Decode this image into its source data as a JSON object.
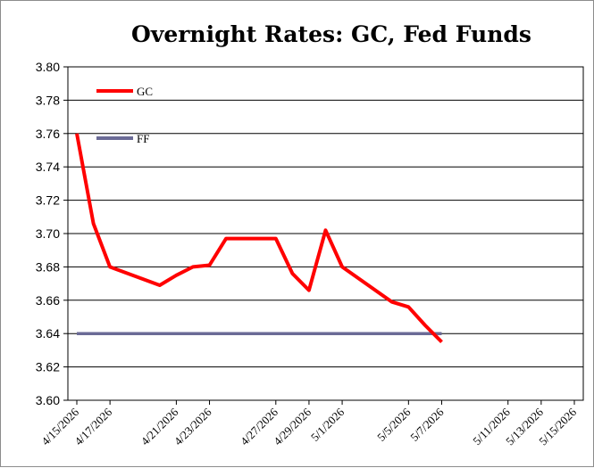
{
  "chart_data": {
    "type": "line",
    "title": "Overnight Rates: GC, Fed Funds",
    "xlabel": "",
    "ylabel": "",
    "ylim": [
      3.6,
      3.8
    ],
    "y_ticks": [
      "3.60",
      "3.62",
      "3.64",
      "3.66",
      "3.68",
      "3.70",
      "3.72",
      "3.74",
      "3.76",
      "3.78",
      "3.80"
    ],
    "x_ticks": [
      "4/15/2026",
      "4/17/2026",
      "4/21/2026",
      "4/23/2026",
      "4/27/2026",
      "4/29/2026",
      "5/1/2026",
      "5/5/2026",
      "5/7/2026",
      "5/11/2026",
      "5/13/2026",
      "5/15/2026"
    ],
    "x_points": [
      "4/15/2026",
      "4/16/2026",
      "4/17/2026",
      "4/20/2026",
      "4/21/2026",
      "4/22/2026",
      "4/23/2026",
      "4/24/2026",
      "4/27/2026",
      "4/28/2026",
      "4/29/2026",
      "4/30/2026",
      "5/1/2026",
      "5/4/2026",
      "5/5/2026",
      "5/6/2026",
      "5/7/2026",
      "5/8/2026"
    ],
    "grid": true,
    "legend_position": "top-left",
    "series": [
      {
        "name": "GC",
        "color": "#ff0000",
        "values": [
          3.76,
          3.706,
          3.68,
          3.669,
          3.675,
          3.68,
          3.681,
          3.697,
          3.697,
          3.676,
          3.666,
          3.702,
          3.68,
          3.659,
          3.656,
          3.645,
          3.635,
          null
        ]
      },
      {
        "name": "FF",
        "color": "#6b6b96",
        "values": [
          3.64,
          3.64,
          3.64,
          3.64,
          3.64,
          3.64,
          3.64,
          3.64,
          3.64,
          3.64,
          3.64,
          3.64,
          3.64,
          3.64,
          3.64,
          3.64,
          3.64,
          null
        ]
      }
    ]
  }
}
